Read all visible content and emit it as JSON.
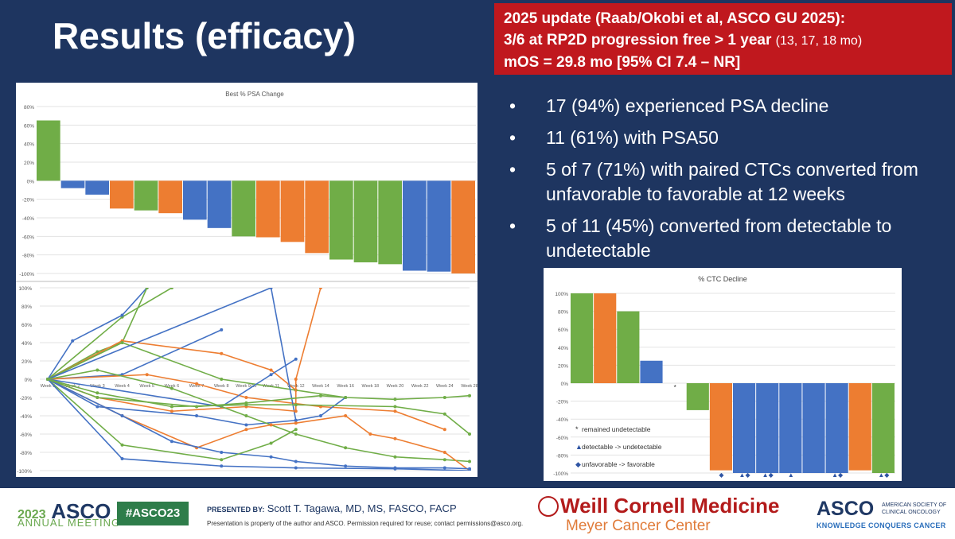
{
  "slide_title": "Results (efficacy)",
  "update": {
    "line1": "2025 update (Raab/Okobi et al, ASCO GU 2025):",
    "line2": "3/6 at RP2D progression free > 1 year",
    "line2_small": "(13, 17, 18 mo)",
    "line3": "mOS = 29.8 mo [95% CI 7.4 – NR]"
  },
  "bullets": [
    "17 (94%) experienced PSA decline",
    "11 (61%) with PSA50",
    "5 of 7 (71%) with paired CTCs converted from unfavorable to favorable at 12 weeks",
    "5 of 11 (45%) converted from detectable to undetectable"
  ],
  "bullet_symbol": "•",
  "colors": {
    "green": "#70ad47",
    "orange": "#ed7d31",
    "blue": "#4472c4",
    "background": "#1e3560",
    "banner": "#c0181e"
  },
  "chart_data": [
    {
      "type": "bar",
      "title": "Best % PSA Change",
      "ylim": [
        -100,
        80
      ],
      "yticks": [
        "80%",
        "60%",
        "40%",
        "20%",
        "0%",
        "-20%",
        "-40%",
        "-60%",
        "-80%",
        "-100%"
      ],
      "grid": true,
      "values": [
        65,
        -8,
        -15,
        -30,
        -32,
        -35,
        -42,
        -51,
        -60,
        -61,
        -66,
        -78,
        -85,
        -88,
        -90,
        -97,
        -98,
        -100
      ],
      "colors": [
        "green",
        "blue",
        "blue",
        "orange",
        "green",
        "orange",
        "blue",
        "blue",
        "green",
        "orange",
        "orange",
        "orange",
        "green",
        "green",
        "green",
        "blue",
        "blue",
        "orange"
      ]
    },
    {
      "type": "line",
      "title": "",
      "ylim": [
        -100,
        100
      ],
      "yticks": [
        "100%",
        "80%",
        "60%",
        "40%",
        "20%",
        "0%",
        "-20%",
        "-40%",
        "-60%",
        "-80%",
        "-100%"
      ],
      "categories": [
        "Week 0",
        "Week 2",
        "Week 3",
        "Week 4",
        "Week 5",
        "Week 6",
        "Week 7",
        "Week 8",
        "Week 9/10",
        "Week 11",
        "Week 12",
        "Week 14",
        "Week 16",
        "Week 18",
        "Week 20",
        "Week 22",
        "Week 24",
        "Week 28"
      ],
      "grid": true,
      "series": [
        {
          "color": "green",
          "points": [
            [
              0,
              0
            ],
            [
              3,
              68
            ],
            [
              5,
              100
            ]
          ]
        },
        {
          "color": "blue",
          "points": [
            [
              0,
              0
            ],
            [
              1,
              42
            ],
            [
              3,
              70
            ],
            [
              4,
              100
            ]
          ]
        },
        {
          "color": "green",
          "points": [
            [
              0,
              0
            ],
            [
              2,
              30
            ],
            [
              3,
              40
            ],
            [
              4,
              100
            ]
          ]
        },
        {
          "color": "blue",
          "points": [
            [
              0,
              0
            ],
            [
              3,
              5
            ],
            [
              7,
              54
            ]
          ]
        },
        {
          "color": "orange",
          "points": [
            [
              0,
              0
            ],
            [
              3,
              42
            ],
            [
              7,
              28
            ],
            [
              9,
              10
            ],
            [
              10,
              -12
            ]
          ]
        },
        {
          "color": "green",
          "points": [
            [
              0,
              0
            ],
            [
              3,
              40
            ],
            [
              7,
              0
            ],
            [
              12,
              -20
            ],
            [
              14,
              -22
            ],
            [
              16,
              -20
            ],
            [
              17,
              -18
            ]
          ]
        },
        {
          "color": "orange",
          "points": [
            [
              0,
              0
            ],
            [
              4,
              5
            ],
            [
              6,
              -5
            ],
            [
              8,
              -20
            ],
            [
              11,
              -30
            ],
            [
              14,
              -35
            ],
            [
              16,
              -55
            ]
          ]
        },
        {
          "color": "blue",
          "points": [
            [
              0,
              0
            ],
            [
              2,
              -30
            ],
            [
              6,
              -40
            ],
            [
              8,
              -50
            ],
            [
              10,
              -45
            ],
            [
              11,
              -40
            ],
            [
              12,
              -20
            ]
          ]
        },
        {
          "color": "blue",
          "points": [
            [
              0,
              0
            ],
            [
              7,
              -30
            ],
            [
              9,
              5
            ],
            [
              10,
              22
            ]
          ]
        },
        {
          "color": "blue",
          "points": [
            [
              0,
              0
            ],
            [
              9,
              100
            ],
            [
              10,
              -45
            ]
          ]
        },
        {
          "color": "orange",
          "points": [
            [
              0,
              0
            ],
            [
              2,
              -20
            ],
            [
              5,
              -35
            ],
            [
              8,
              -30
            ],
            [
              10,
              -35
            ],
            [
              10,
              0
            ],
            [
              11,
              100
            ]
          ]
        },
        {
          "color": "green",
          "points": [
            [
              0,
              0
            ],
            [
              2,
              -15
            ],
            [
              5,
              -30
            ],
            [
              8,
              -28
            ],
            [
              10,
              -28
            ],
            [
              14,
              -30
            ],
            [
              16,
              -38
            ],
            [
              17,
              -60
            ]
          ]
        },
        {
          "color": "green",
          "points": [
            [
              0,
              0
            ],
            [
              2,
              10
            ],
            [
              5,
              -10
            ],
            [
              8,
              -40
            ],
            [
              10,
              -60
            ],
            [
              12,
              -75
            ],
            [
              14,
              -85
            ],
            [
              16,
              -88
            ],
            [
              17,
              -90
            ]
          ]
        },
        {
          "color": "orange",
          "points": [
            [
              0,
              0
            ],
            [
              3,
              -40
            ],
            [
              6,
              -75
            ],
            [
              8,
              -55
            ],
            [
              9,
              -50
            ],
            [
              10,
              -48
            ],
            [
              12,
              -40
            ],
            [
              13,
              -60
            ],
            [
              14,
              -65
            ],
            [
              16,
              -80
            ],
            [
              17,
              -100
            ]
          ]
        },
        {
          "color": "blue",
          "points": [
            [
              0,
              0
            ],
            [
              3,
              -40
            ],
            [
              5,
              -68
            ],
            [
              7,
              -80
            ],
            [
              9,
              -85
            ],
            [
              10,
              -90
            ],
            [
              12,
              -95
            ],
            [
              14,
              -97
            ],
            [
              16,
              -97
            ],
            [
              17,
              -98
            ]
          ]
        },
        {
          "color": "green",
          "points": [
            [
              0,
              0
            ],
            [
              3,
              -72
            ],
            [
              7,
              -88
            ],
            [
              9,
              -70
            ],
            [
              10,
              -55
            ]
          ]
        },
        {
          "color": "blue",
          "points": [
            [
              0,
              0
            ],
            [
              3,
              -87
            ],
            [
              7,
              -95
            ],
            [
              10,
              -97
            ],
            [
              14,
              -98
            ],
            [
              17,
              -100
            ]
          ]
        },
        {
          "color": "green",
          "points": [
            [
              0,
              0
            ],
            [
              2,
              -20
            ],
            [
              6,
              -30
            ],
            [
              8,
              -26
            ],
            [
              11,
              -18
            ],
            [
              12,
              -20
            ]
          ]
        }
      ]
    },
    {
      "type": "bar",
      "title": "% CTC Decline",
      "ylim": [
        -100,
        100
      ],
      "yticks": [
        "100%",
        "80%",
        "60%",
        "40%",
        "20%",
        "0%",
        "-20%",
        "-40%",
        "-60%",
        "-80%",
        "-100%"
      ],
      "grid": true,
      "values": [
        100,
        100,
        80,
        25,
        0,
        -30,
        -97,
        -100,
        -100,
        -100,
        -100,
        -100,
        -97,
        -100
      ],
      "colors": [
        "green",
        "orange",
        "green",
        "blue",
        "none",
        "green",
        "orange",
        "blue",
        "blue",
        "blue",
        "blue",
        "blue",
        "orange",
        "green"
      ],
      "markers": [
        "",
        "",
        "",
        "",
        "*",
        "",
        "◆",
        "▲◆",
        "▲◆",
        "▲",
        "",
        "▲◆",
        "",
        "▲◆"
      ],
      "legend": [
        {
          "symbol": "*",
          "label": "remained undetectable"
        },
        {
          "symbol": "▲",
          "label": "detectable -> undetectable"
        },
        {
          "symbol": "◆",
          "label": "unfavorable -> favorable"
        }
      ]
    }
  ],
  "footer": {
    "year": "2023",
    "asco": "ASCO",
    "annual": "ANNUAL MEETING",
    "hashtag": "#ASCO23",
    "presented_by": "PRESENTED BY:",
    "presenter": "Scott T. Tagawa, MD, MS, FASCO, FACP",
    "note": "Presentation is property of the author and ASCO. Permission required for reuse; contact permissions@asco.org.",
    "wcm": "Weill Cornell Medicine",
    "meyer": "Meyer Cancer Center",
    "asco_right": "ASCO",
    "asco_right_sub": "AMERICAN SOCIETY OF CLINICAL ONCOLOGY",
    "kcc": "KNOWLEDGE CONQUERS CANCER"
  }
}
